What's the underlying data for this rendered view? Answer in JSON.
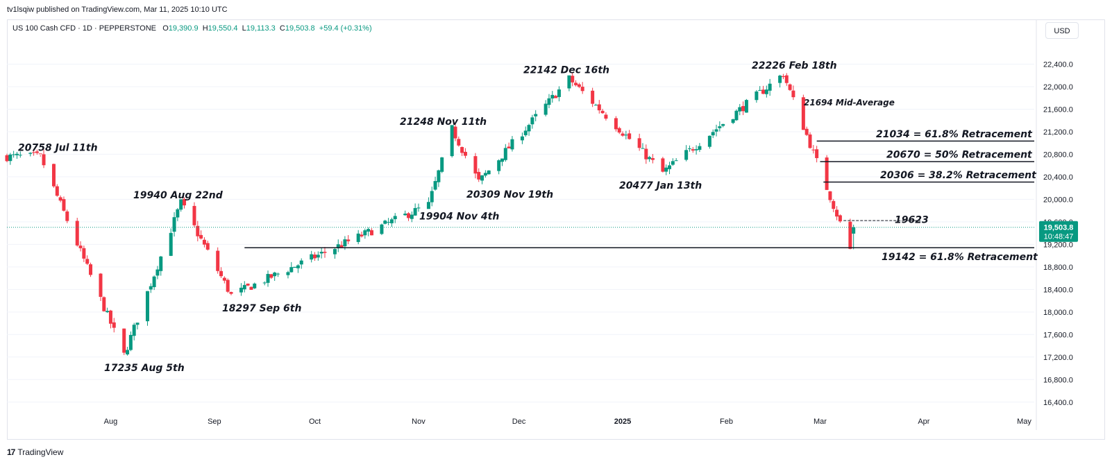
{
  "header": {
    "published": "tv1lsqiw published on TradingView.com, Mar 11, 2025 10:10 UTC"
  },
  "legend": {
    "symbol": "US 100 Cash CFD · 1D · PEPPERSTONE",
    "o_label": "O",
    "o_value": "19,390.9",
    "h_label": "H",
    "h_value": "19,550.4",
    "l_label": "L",
    "l_value": "19,113.3",
    "c_label": "C",
    "c_value": "19,503.8",
    "change": "+59.4 (+0.31%)"
  },
  "currency_button": "USD",
  "footer": {
    "brand": "TradingView"
  },
  "colors": {
    "up": "#089981",
    "down": "#f23645",
    "grid": "#f0f3fa",
    "price_tag": "#089981"
  },
  "chart_data": {
    "type": "candlestick",
    "y_axis": {
      "ticks": [
        "16,400.0",
        "16,800.0",
        "17,200.0",
        "17,600.0",
        "18,000.0",
        "18,400.0",
        "18,800.0",
        "19,200.0",
        "19,600.0",
        "20,000.0",
        "20,400.0",
        "20,800.0",
        "21,200.0",
        "21,600.0",
        "22,000.0",
        "22,400.0"
      ],
      "tick_values": [
        16400,
        16800,
        17200,
        17600,
        18000,
        18400,
        18800,
        19200,
        19600,
        20000,
        20400,
        20800,
        21200,
        21600,
        22000,
        22400
      ],
      "range": [
        16200,
        22800
      ]
    },
    "x_axis": {
      "ticks": [
        {
          "label": "Aug",
          "date": "2024-08-01"
        },
        {
          "label": "Sep",
          "date": "2024-09-01"
        },
        {
          "label": "Oct",
          "date": "2024-10-01"
        },
        {
          "label": "Nov",
          "date": "2024-11-01"
        },
        {
          "label": "Dec",
          "date": "2024-12-01"
        },
        {
          "label": "2025",
          "date": "2025-01-01",
          "bold": true
        },
        {
          "label": "Feb",
          "date": "2025-02-01"
        },
        {
          "label": "Mar",
          "date": "2025-03-01"
        },
        {
          "label": "Apr",
          "date": "2025-04-01"
        },
        {
          "label": "May",
          "date": "2025-05-01"
        }
      ],
      "range": [
        "2024-07-01",
        "2025-05-04"
      ]
    },
    "last_price": {
      "label": "19,503.8",
      "countdown": "10:48:47",
      "value": 19503.8
    },
    "anchors": [
      {
        "date": "2024-07-11",
        "value": 20758
      },
      {
        "date": "2024-08-05",
        "value": 17235
      },
      {
        "date": "2024-08-22",
        "value": 19940
      },
      {
        "date": "2024-09-06",
        "value": 18297
      },
      {
        "date": "2024-11-04",
        "value": 19904
      },
      {
        "date": "2024-11-11",
        "value": 21248
      },
      {
        "date": "2024-11-19",
        "value": 20309
      },
      {
        "date": "2024-12-16",
        "value": 22142
      },
      {
        "date": "2025-01-13",
        "value": 20477
      },
      {
        "date": "2025-02-18",
        "value": 22226
      },
      {
        "date": "2025-03-10",
        "value": 19113
      }
    ],
    "annotations": [
      {
        "text": "20758 Jul 11th",
        "date": "2024-07-11",
        "value": 20758,
        "size": "large"
      },
      {
        "text": "17235 Aug 5th",
        "date": "2024-08-05",
        "value": 17235,
        "size": "large"
      },
      {
        "text": "19940 Aug 22nd",
        "date": "2024-08-22",
        "value": 19940,
        "size": "large"
      },
      {
        "text": "18297 Sep 6th",
        "date": "2024-09-06",
        "value": 18297,
        "size": "large"
      },
      {
        "text": "19904 Nov 4th",
        "date": "2024-11-04",
        "value": 19904,
        "size": "large"
      },
      {
        "text": "21248 Nov 11th",
        "date": "2024-11-11",
        "value": 21248,
        "size": "large"
      },
      {
        "text": "20309 Nov 19th",
        "date": "2024-11-19",
        "value": 20309,
        "size": "large"
      },
      {
        "text": "22142 Dec 16th",
        "date": "2024-12-16",
        "value": 22142,
        "size": "large"
      },
      {
        "text": "20477 Jan 13th",
        "date": "2025-01-13",
        "value": 20477,
        "size": "large"
      },
      {
        "text": "22226 Feb 18th",
        "date": "2025-02-18",
        "value": 22226,
        "size": "large"
      },
      {
        "text": "21694 Mid-Average",
        "value": 21694,
        "size": "small"
      },
      {
        "text": "21034 = 61.8% Retracement",
        "value": 21034,
        "size": "large"
      },
      {
        "text": "20670 = 50% Retracement",
        "value": 20670,
        "size": "large"
      },
      {
        "text": "20306 = 38.2% Retracement",
        "value": 20306,
        "size": "large"
      },
      {
        "text": "19623",
        "value": 19623,
        "size": "large"
      },
      {
        "text": "19142 = 61.8% Retracement",
        "value": 19142,
        "size": "large"
      }
    ],
    "horizontal_lines": [
      {
        "value": 21034,
        "from": "2025-02-28",
        "to": "2025-05-04",
        "style": "solid"
      },
      {
        "value": 20670,
        "from": "2025-03-01",
        "to": "2025-05-04",
        "style": "solid"
      },
      {
        "value": 20306,
        "from": "2025-03-02",
        "to": "2025-05-04",
        "style": "solid"
      },
      {
        "value": 19623,
        "from": "2025-03-08",
        "to": "2025-03-31",
        "style": "dashed"
      },
      {
        "value": 19142,
        "from": "2024-09-10",
        "to": "2025-05-04",
        "style": "solid"
      }
    ]
  }
}
